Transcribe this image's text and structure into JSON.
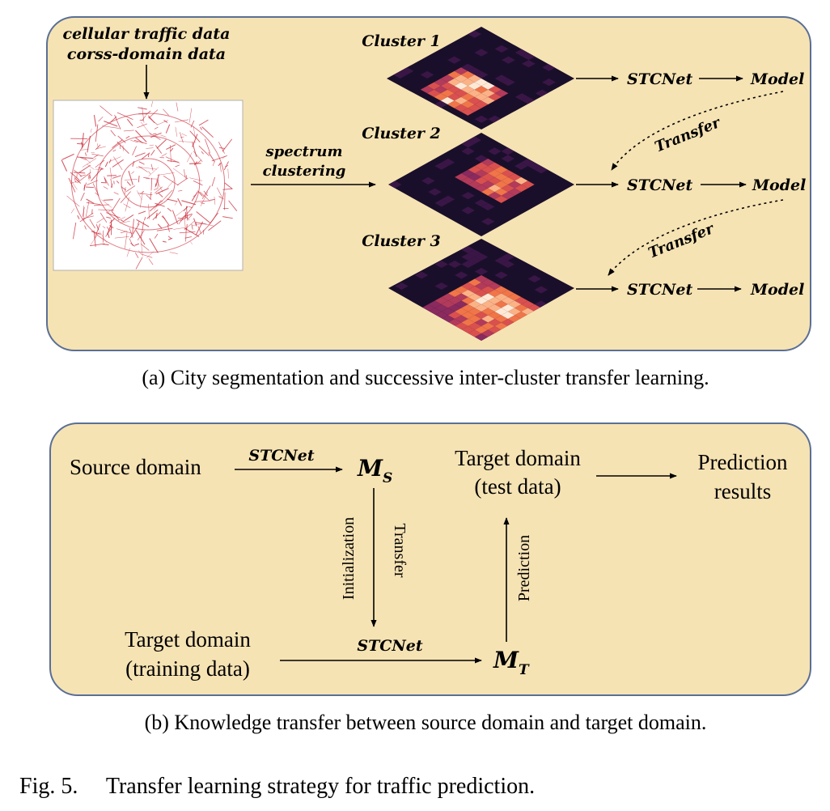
{
  "colors": {
    "panel_fill": "#f6e3b4",
    "panel_stroke": "#5a6f95",
    "heat_dark": "#1a0f2a",
    "heat_palette": [
      "#1a0f2a",
      "#3a1646",
      "#5e1f55",
      "#8a2a5e",
      "#b23a5a",
      "#d9504f",
      "#f07548",
      "#fbb286",
      "#ffe9d6"
    ],
    "city_line": "#c8202f"
  },
  "panel_a": {
    "input_line1": "cellular traffic data",
    "input_line2": "corss-domain data",
    "arrow_label_line1": "spectrum",
    "arrow_label_line2": "clustering",
    "clusters": [
      {
        "label": "Cluster 1",
        "net": "STCNet",
        "model": "Model"
      },
      {
        "label": "Cluster 2",
        "net": "STCNet",
        "model": "Model"
      },
      {
        "label": "Cluster 3",
        "net": "STCNet",
        "model": "Model"
      }
    ],
    "transfer_label": "Transfer",
    "caption": "(a) City segmentation and successive inter-cluster transfer learning."
  },
  "panel_b": {
    "source_domain": "Source domain",
    "stcnet_top": "STCNet",
    "ms_main": "M",
    "ms_sub": "S",
    "target_test_line1": "Target domain",
    "target_test_line2": "(test data)",
    "prediction_results_line1": "Prediction",
    "prediction_results_line2": "results",
    "initialization": "Initialization",
    "transfer": "Transfer",
    "prediction": "Prediction",
    "target_train_line1": "Target domain",
    "target_train_line2": "(training data)",
    "stcnet_bottom": "STCNet",
    "mt_main": "M",
    "mt_sub": "T",
    "caption": "(b) Knowledge transfer between source domain and target domain."
  },
  "figure_caption": "Fig. 5.  Transfer learning strategy for traffic prediction."
}
